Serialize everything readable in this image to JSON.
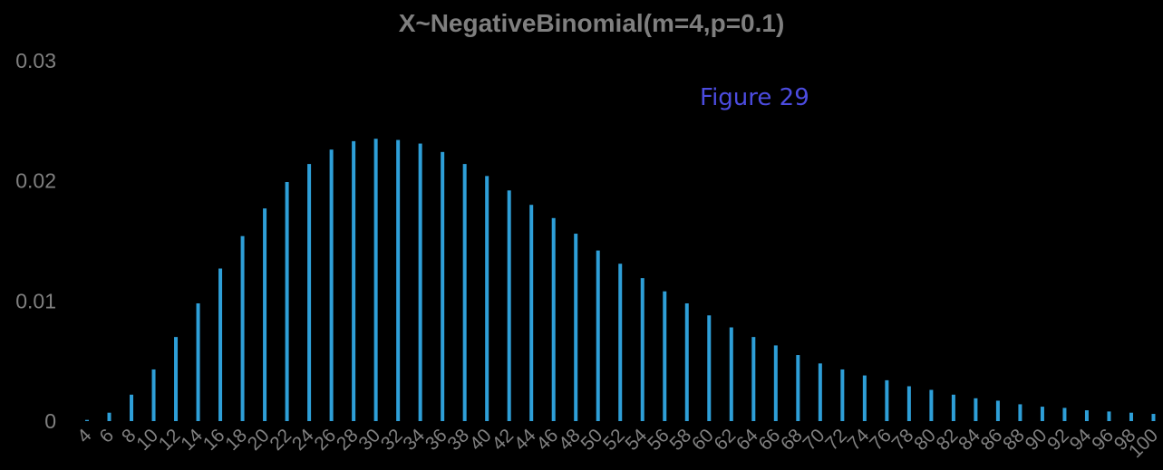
{
  "chart_data": {
    "type": "bar",
    "title": "X~NegativeBinomial(m=4,p=0.1)",
    "annotation": "Figure 29",
    "xlabel": "",
    "ylabel": "",
    "ylim": [
      0,
      0.03
    ],
    "yticks": [
      "0",
      "0.01",
      "0.02",
      "0.03"
    ],
    "grid": false,
    "legend": "none",
    "bar_color": "#2e9fd8",
    "categories": [
      "4",
      "6",
      "8",
      "10",
      "12",
      "14",
      "16",
      "18",
      "20",
      "22",
      "24",
      "26",
      "28",
      "30",
      "32",
      "34",
      "36",
      "38",
      "40",
      "42",
      "44",
      "46",
      "48",
      "50",
      "52",
      "54",
      "56",
      "58",
      "60",
      "62",
      "64",
      "66",
      "68",
      "70",
      "72",
      "74",
      "76",
      "78",
      "80",
      "82",
      "84",
      "86",
      "88",
      "90",
      "92",
      "94",
      "96",
      "98",
      "100"
    ],
    "values": [
      0.0001,
      0.0007,
      0.0022,
      0.0043,
      0.007,
      0.0098,
      0.0127,
      0.0154,
      0.0177,
      0.0199,
      0.0214,
      0.0226,
      0.0233,
      0.0235,
      0.0234,
      0.0231,
      0.0224,
      0.0214,
      0.0204,
      0.0192,
      0.018,
      0.0169,
      0.0156,
      0.0142,
      0.0131,
      0.0119,
      0.0108,
      0.0098,
      0.0088,
      0.0078,
      0.007,
      0.0063,
      0.0055,
      0.0048,
      0.0043,
      0.0038,
      0.0034,
      0.0029,
      0.0026,
      0.0022,
      0.0019,
      0.0017,
      0.0014,
      0.0012,
      0.0011,
      0.0009,
      0.0008,
      0.0007,
      0.0006
    ]
  }
}
